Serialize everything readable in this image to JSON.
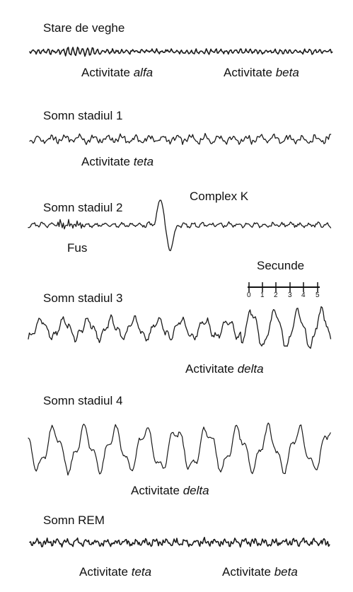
{
  "panels": [
    {
      "title": "Stare de veghe",
      "labels": [
        {
          "prefix": "Activitate",
          "emph": "alfa"
        },
        {
          "prefix": "Activitate",
          "emph": "beta"
        }
      ]
    },
    {
      "title": "Somn stadiul 1",
      "labels": [
        {
          "prefix": "Activitate",
          "emph": "teta"
        }
      ]
    },
    {
      "title": "Somn stadiul 2",
      "labels": [
        {
          "text": "Complex K"
        },
        {
          "text": "Fus"
        }
      ]
    },
    {
      "title": "Somn stadiul 3",
      "labels": [
        {
          "prefix": "Activitate",
          "emph": "delta"
        }
      ]
    },
    {
      "title": "Somn stadiul 4",
      "labels": [
        {
          "prefix": "Activitate",
          "emph": "delta"
        }
      ]
    },
    {
      "title": "Somn REM",
      "labels": [
        {
          "prefix": "Activitate",
          "emph": "teta"
        },
        {
          "prefix": "Activitate",
          "emph": "beta"
        }
      ]
    }
  ],
  "scale": {
    "title": "Secunde",
    "ticks": [
      "0",
      "1",
      "2",
      "3",
      "4",
      "5"
    ]
  },
  "colors": {
    "trace": "#1a1a1a",
    "background": "#ffffff"
  }
}
